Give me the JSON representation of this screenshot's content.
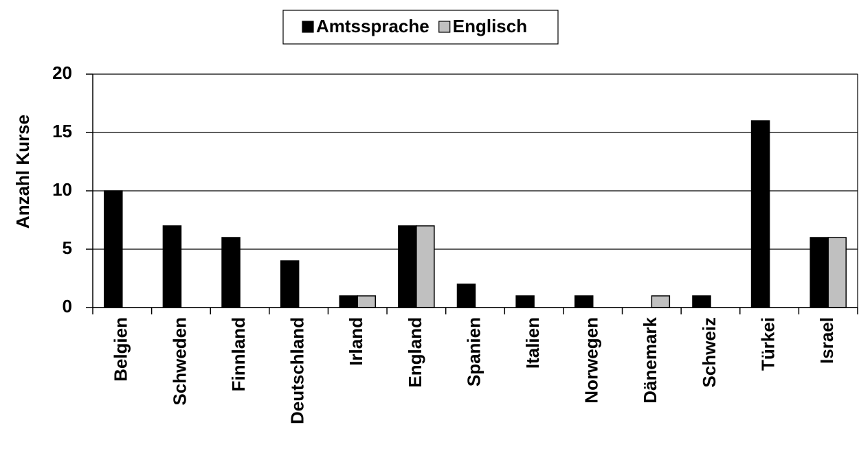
{
  "chart_data": {
    "type": "bar",
    "ylabel": "Anzahl Kurse",
    "categories": [
      "Belgien",
      "Schweden",
      "Finnland",
      "Deutschland",
      "Irland",
      "England",
      "Spanien",
      "Italien",
      "Norwegen",
      "Dänemark",
      "Schweiz",
      "Türkei",
      "Israel"
    ],
    "series": [
      {
        "name": "Amtssprache",
        "color": "#000000",
        "values": [
          10,
          7,
          6,
          4,
          1,
          7,
          2,
          1,
          1,
          0,
          1,
          16,
          6
        ]
      },
      {
        "name": "Englisch",
        "color": "#c0c0c0",
        "values": [
          0,
          0,
          0,
          0,
          1,
          7,
          0,
          0,
          0,
          1,
          0,
          0,
          6
        ]
      }
    ],
    "ylim": [
      0,
      20
    ],
    "yticks": [
      0,
      5,
      10,
      15,
      20
    ],
    "grid": true,
    "legend": "top"
  }
}
